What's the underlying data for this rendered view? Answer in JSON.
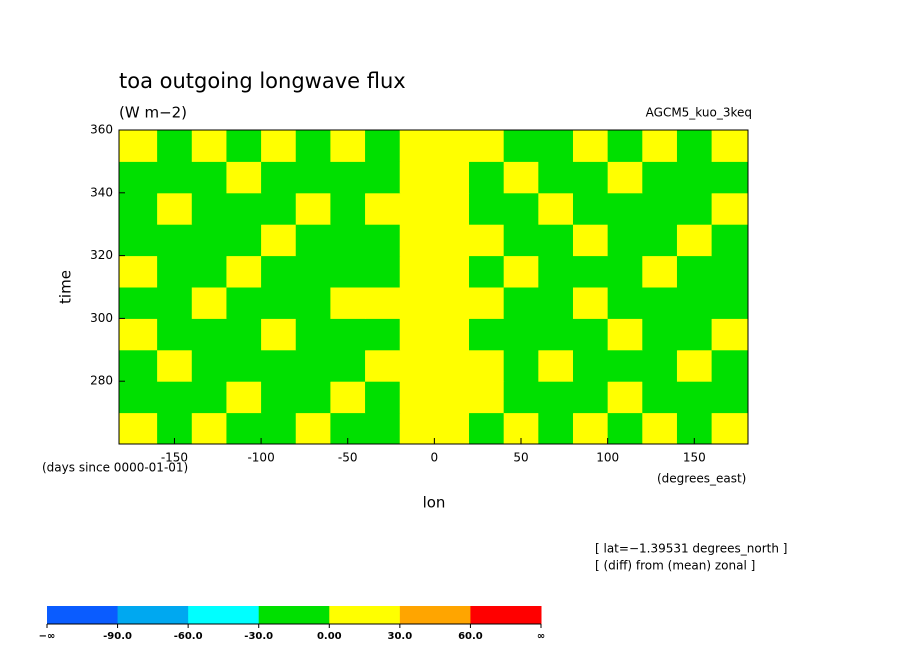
{
  "chart_data": {
    "type": "heatmap",
    "title": "toa outgoing longwave flux",
    "units": "(W m−2)",
    "dataset": "AGCM5_kuo_3keq",
    "x_label": "lon",
    "y_label": "time",
    "y_units": "(days since 0000-01-01)",
    "x_units": "(degrees_east)",
    "notes": [
      "[ lat=−1.39531 degrees_north ]",
      "[ (diff) from (mean) zonal ]"
    ],
    "xlim": [
      -182,
      181
    ],
    "ylim": [
      260,
      360
    ],
    "xticks": [
      -150,
      -100,
      -50,
      0,
      50,
      100,
      150
    ],
    "yticks": [
      280,
      300,
      320,
      340,
      360
    ],
    "lon_edges": [
      -182,
      -160,
      -140,
      -120,
      -100,
      -80,
      -60,
      -40,
      -20,
      0,
      20,
      40,
      60,
      80,
      100,
      120,
      140,
      160,
      181
    ],
    "time_edges": [
      260,
      270,
      280,
      290,
      300,
      310,
      320,
      330,
      340,
      350,
      360
    ],
    "z": [
      [
        15,
        -15,
        15,
        -15,
        -15,
        15,
        -15,
        -15,
        15,
        15,
        -15,
        15,
        -15,
        15,
        -15,
        15,
        -15,
        15
      ],
      [
        -15,
        -15,
        -15,
        15,
        -15,
        -15,
        15,
        -15,
        15,
        15,
        15,
        -15,
        -15,
        -15,
        15,
        -15,
        -15,
        -15
      ],
      [
        -15,
        15,
        -15,
        -15,
        -15,
        -15,
        -15,
        15,
        15,
        15,
        15,
        -15,
        15,
        -15,
        -15,
        -15,
        15,
        -15
      ],
      [
        15,
        -15,
        -15,
        -15,
        15,
        -15,
        -15,
        -15,
        15,
        15,
        -15,
        -15,
        -15,
        -15,
        15,
        -15,
        -15,
        15
      ],
      [
        -15,
        -15,
        15,
        -15,
        -15,
        -15,
        15,
        15,
        15,
        15,
        15,
        -15,
        -15,
        15,
        -15,
        -15,
        -15,
        -15
      ],
      [
        15,
        -15,
        -15,
        15,
        -15,
        -15,
        -15,
        -15,
        15,
        15,
        -15,
        15,
        -15,
        -15,
        -15,
        15,
        -15,
        -15
      ],
      [
        -15,
        -15,
        -15,
        -15,
        15,
        -15,
        -15,
        -15,
        15,
        15,
        15,
        -15,
        -15,
        15,
        -15,
        -15,
        15,
        -15
      ],
      [
        -15,
        15,
        -15,
        -15,
        -15,
        15,
        -15,
        15,
        15,
        15,
        -15,
        -15,
        15,
        -15,
        -15,
        -15,
        -15,
        15
      ],
      [
        -15,
        -15,
        -15,
        15,
        -15,
        -15,
        -15,
        -15,
        15,
        15,
        -15,
        15,
        -15,
        -15,
        15,
        -15,
        -15,
        -15
      ],
      [
        15,
        -15,
        15,
        -15,
        15,
        -15,
        15,
        -15,
        15,
        15,
        15,
        -15,
        -15,
        15,
        -15,
        15,
        -15,
        15
      ]
    ],
    "levels": [
      -90,
      -60,
      -30,
      0,
      30,
      60
    ],
    "colors": [
      "#0a5cff",
      "#00a8f0",
      "#00ffff",
      "#00e000",
      "#ffff00",
      "#ffa500",
      "#ff0000"
    ],
    "colorbar_ticks": [
      "−∞",
      {
        "value": -90,
        "label": "-90.0"
      },
      {
        "value": -60,
        "label": "-60.0"
      },
      {
        "value": -30,
        "label": "-30.0"
      },
      {
        "value": 0,
        "label": "0.00"
      },
      {
        "value": 30,
        "label": "30.0"
      },
      {
        "value": 60,
        "label": "60.0"
      },
      "∞"
    ]
  }
}
